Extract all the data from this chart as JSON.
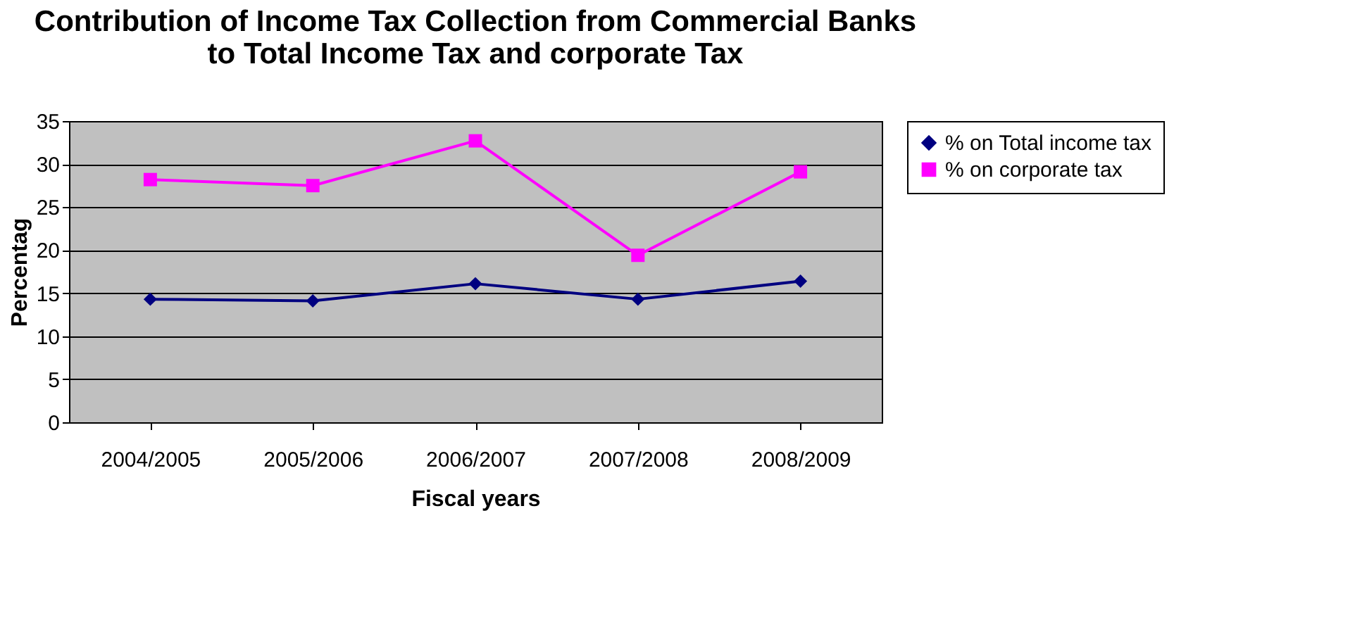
{
  "chart_data": {
    "type": "line",
    "title": [
      "Contribution of Income Tax Collection from Commercial Banks",
      "to Total Income Tax and corporate Tax"
    ],
    "xlabel": "Fiscal years",
    "ylabel": "Percentag",
    "categories": [
      "2004/2005",
      "2005/2006",
      "2006/2007",
      "2007/2008",
      "2008/2009"
    ],
    "series": [
      {
        "name": "% on Total income tax",
        "color": "#000080",
        "marker": "diamond",
        "values": [
          14.3,
          14.1,
          16.1,
          14.3,
          16.4
        ]
      },
      {
        "name": "% on corporate tax",
        "color": "#ff00ff",
        "marker": "square",
        "values": [
          28.2,
          27.5,
          32.7,
          19.4,
          29.1
        ]
      }
    ],
    "ylim": [
      0,
      35
    ],
    "yticks": [
      0,
      5,
      10,
      15,
      20,
      25,
      30,
      35
    ],
    "grid": "y",
    "legend": "right",
    "line_style": "solid"
  }
}
